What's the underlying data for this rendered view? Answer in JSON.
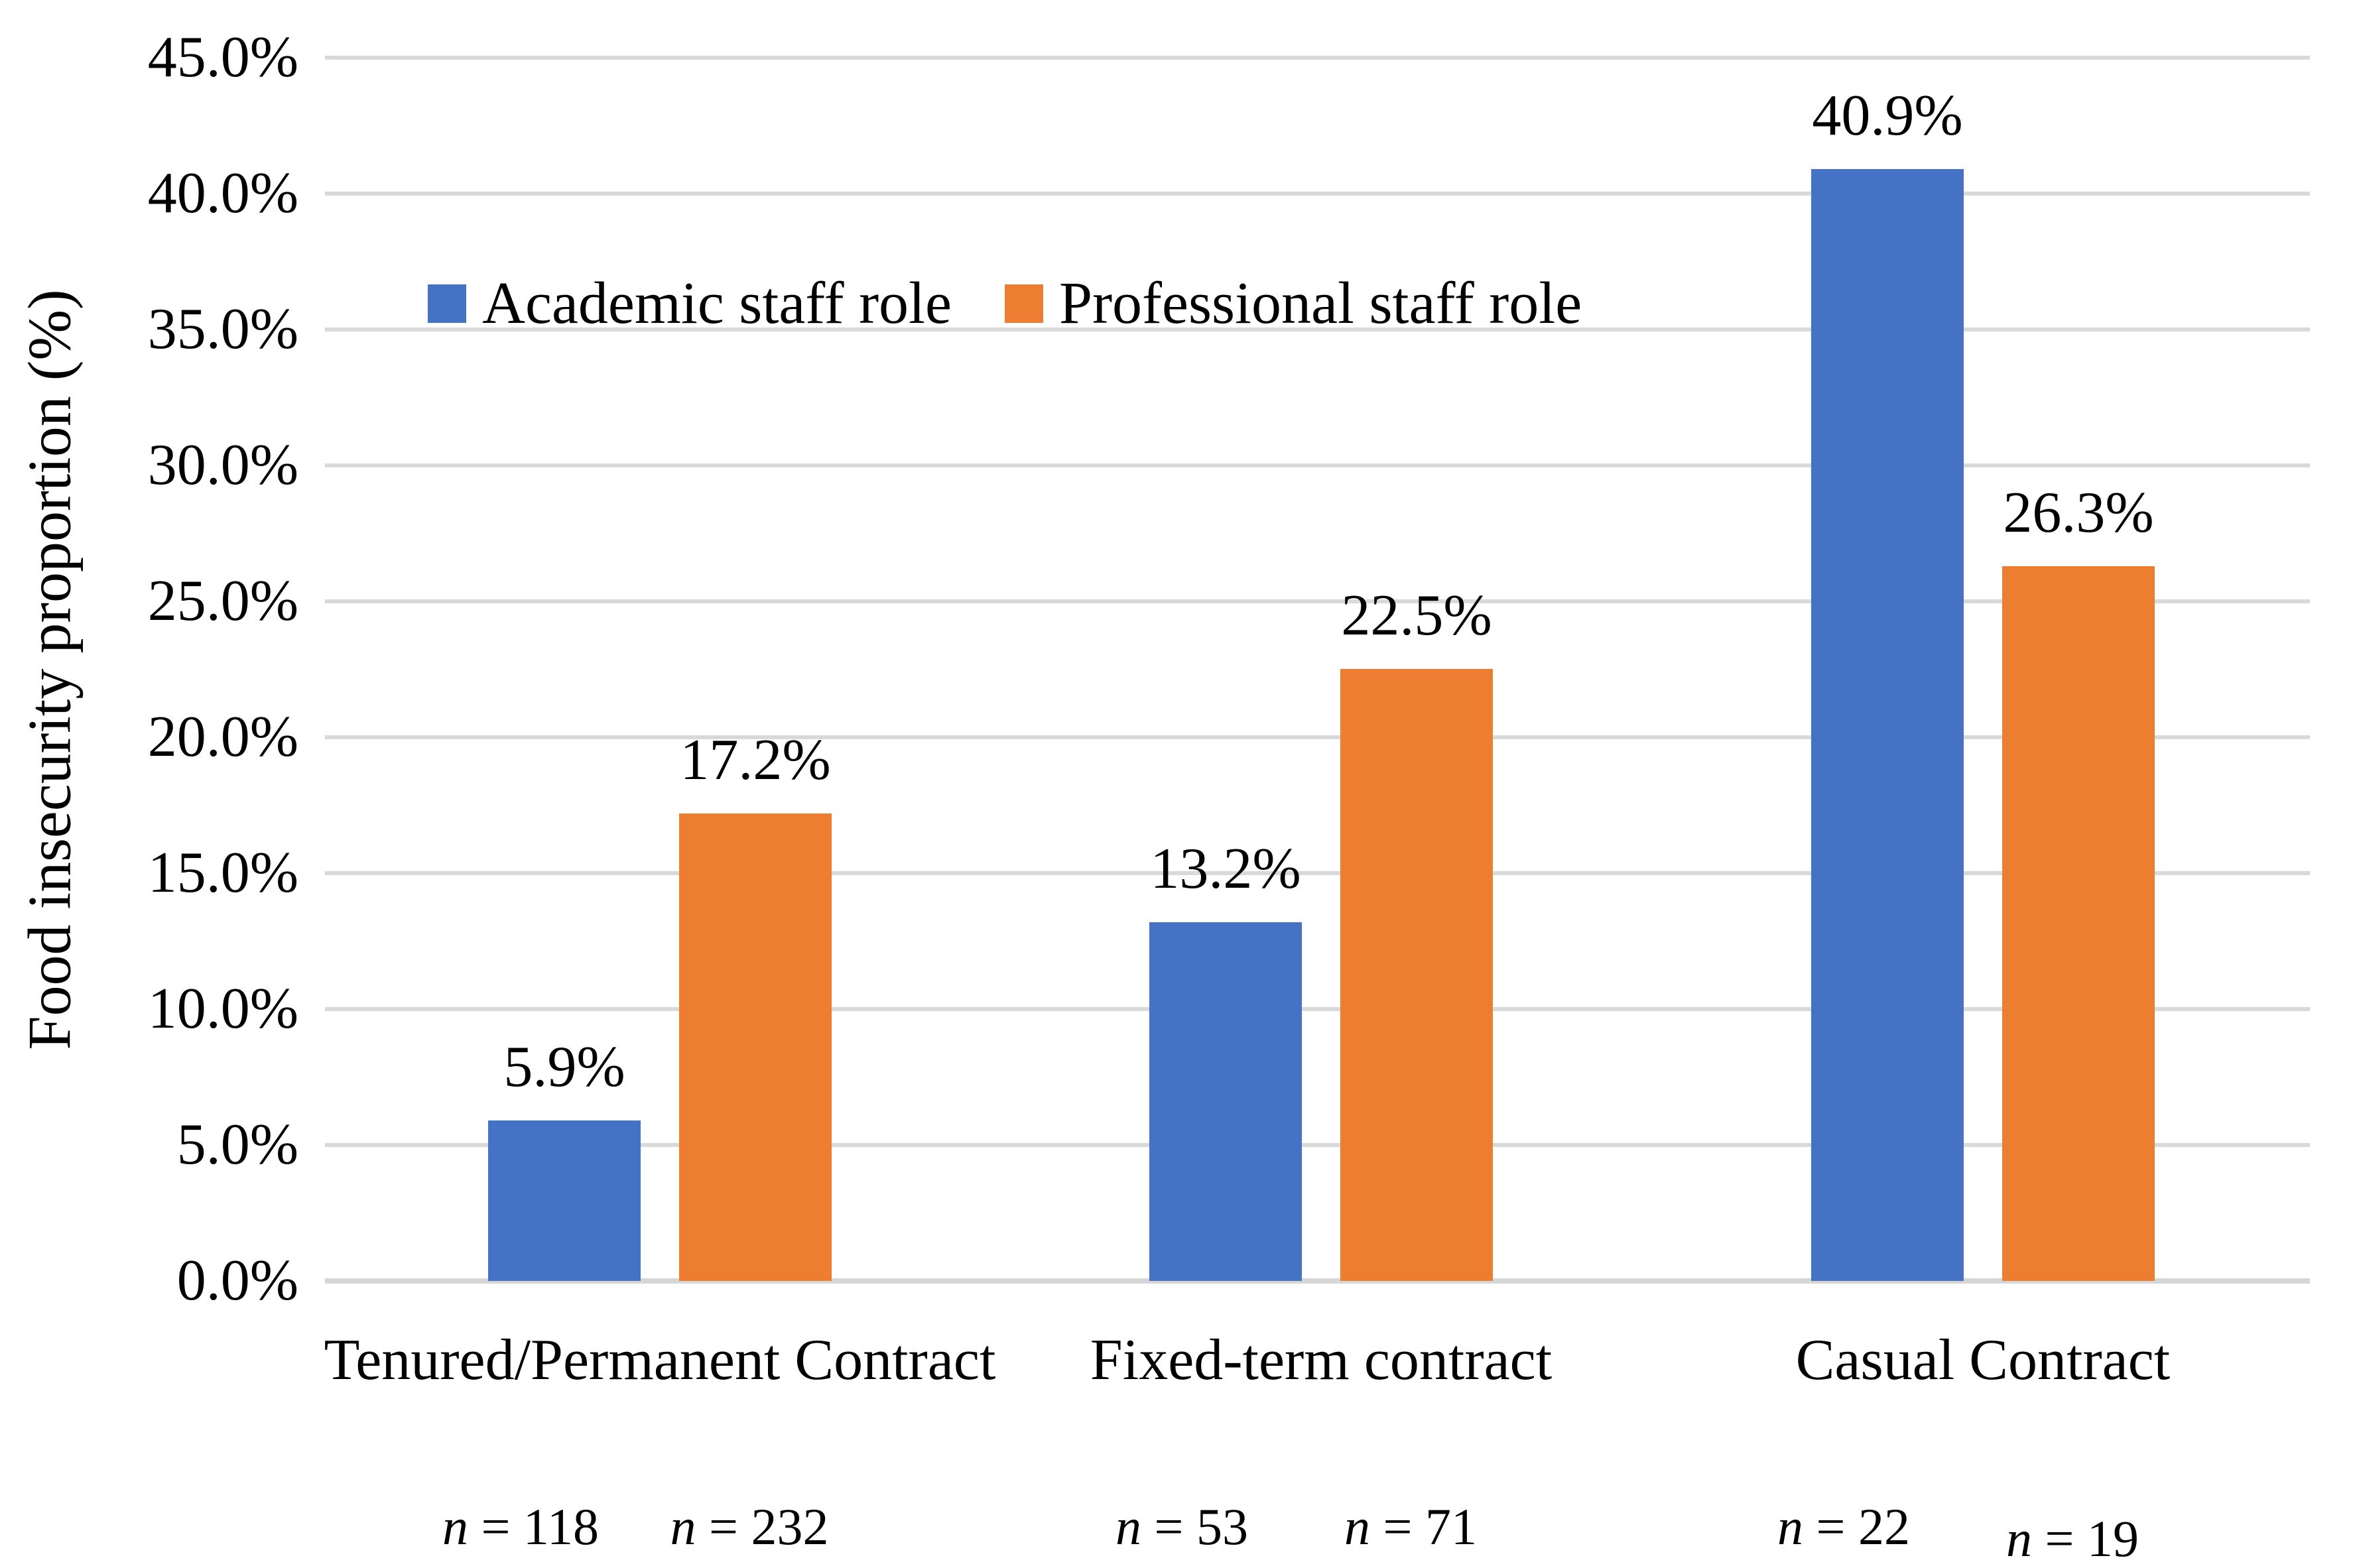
{
  "colors": {
    "academic_blue": "#4472C4",
    "professional_orange": "#ED7D31",
    "gridline_gray": "#D9D9D9",
    "text_black": "#000000"
  },
  "y_axis": {
    "title": "Food insecurity proportion (%)",
    "tick_labels": [
      "0.0%",
      "5.0%",
      "10.0%",
      "15.0%",
      "20.0%",
      "25.0%",
      "30.0%",
      "35.0%",
      "40.0%",
      "45.0%"
    ]
  },
  "chart_data": {
    "type": "bar",
    "title": "",
    "categories": [
      "Tenured/Permanent Contract",
      "Fixed-term contract",
      "Casual Contract"
    ],
    "series": [
      {
        "name": "Academic staff role",
        "color": "#4472C4",
        "values": [
          5.9,
          13.2,
          40.9
        ],
        "data_labels": [
          "5.9%",
          "13.2%",
          "40.9%"
        ],
        "sample_labels": [
          "n = 118",
          "n = 53",
          "n = 22"
        ]
      },
      {
        "name": "Professional staff role",
        "color": "#ED7D31",
        "values": [
          17.2,
          22.5,
          26.3
        ],
        "data_labels": [
          "17.2%",
          "22.5%",
          "26.3%"
        ],
        "sample_labels": [
          "n = 232",
          "n = 71",
          "n = 19"
        ]
      }
    ],
    "xlabel": "",
    "ylabel": "Food insecurity proportion (%)",
    "ylim": [
      0,
      45
    ],
    "ytick_step": 5,
    "grid": true,
    "legend_position": "inside-top-left"
  }
}
